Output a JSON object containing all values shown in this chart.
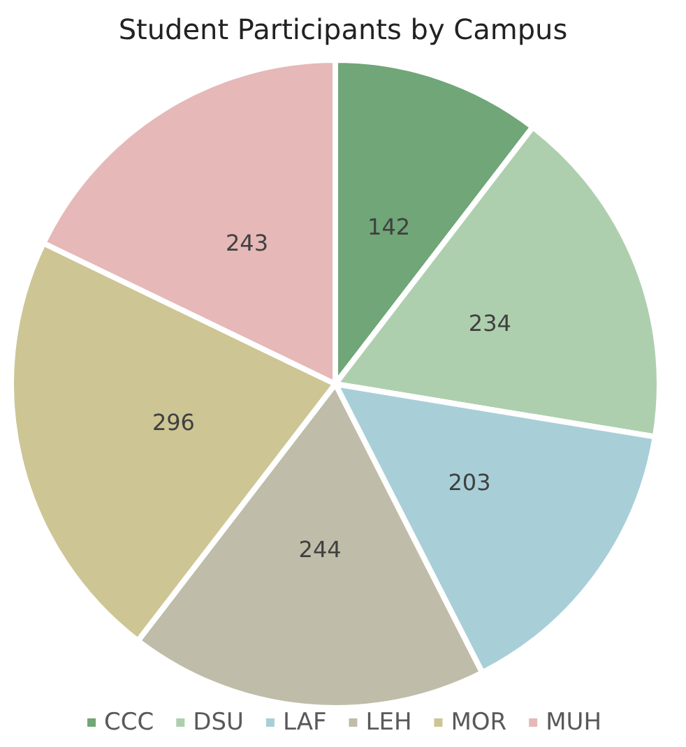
{
  "chart_data": {
    "type": "pie",
    "title": "Student Participants by Campus",
    "categories": [
      "CCC",
      "DSU",
      "LAF",
      "LEH",
      "MOR",
      "MUH"
    ],
    "values": [
      142,
      234,
      203,
      244,
      296,
      243
    ],
    "colors": [
      "#70a678",
      "#aecfae",
      "#a8cfd8",
      "#bfbda9",
      "#cdc594",
      "#e6b8b8"
    ],
    "data_labels": true,
    "legend": "bottom"
  }
}
